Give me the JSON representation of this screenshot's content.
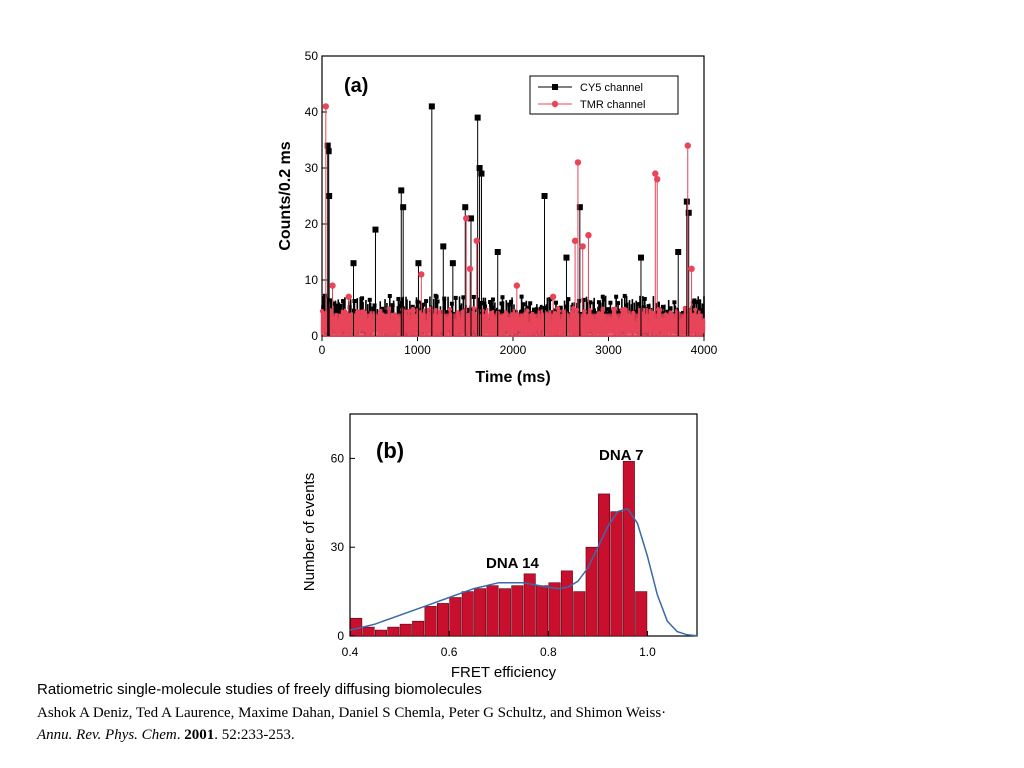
{
  "chart_data": [
    {
      "type": "line",
      "panel_label": "(a)",
      "xlabel": "Time (ms)",
      "ylabel": "Counts/0.2 ms",
      "xlim": [
        0,
        4000
      ],
      "ylim": [
        0,
        50
      ],
      "xticks": [
        0,
        1000,
        2000,
        3000,
        4000
      ],
      "yticks": [
        0,
        10,
        20,
        30,
        40,
        50
      ],
      "legend_position": "top-right",
      "series": [
        {
          "name": "CY5 channel",
          "color": "#000000",
          "marker": "square",
          "bursts": [
            {
              "x": 60,
              "y": 34
            },
            {
              "x": 70,
              "y": 33
            },
            {
              "x": 75,
              "y": 25
            },
            {
              "x": 330,
              "y": 13
            },
            {
              "x": 560,
              "y": 19
            },
            {
              "x": 830,
              "y": 26
            },
            {
              "x": 850,
              "y": 23
            },
            {
              "x": 1010,
              "y": 13
            },
            {
              "x": 1150,
              "y": 41
            },
            {
              "x": 1270,
              "y": 16
            },
            {
              "x": 1370,
              "y": 13
            },
            {
              "x": 1500,
              "y": 23
            },
            {
              "x": 1560,
              "y": 21
            },
            {
              "x": 1630,
              "y": 39
            },
            {
              "x": 1650,
              "y": 30
            },
            {
              "x": 1670,
              "y": 29
            },
            {
              "x": 1840,
              "y": 15
            },
            {
              "x": 2330,
              "y": 25
            },
            {
              "x": 2560,
              "y": 14
            },
            {
              "x": 2700,
              "y": 23
            },
            {
              "x": 3340,
              "y": 14
            },
            {
              "x": 3730,
              "y": 15
            },
            {
              "x": 3820,
              "y": 24
            },
            {
              "x": 3840,
              "y": 22
            }
          ],
          "baseline_range": [
            0,
            6
          ]
        },
        {
          "name": "TMR channel",
          "color": "#e8445a",
          "marker": "circle",
          "bursts": [
            {
              "x": 40,
              "y": 41
            },
            {
              "x": 110,
              "y": 9
            },
            {
              "x": 280,
              "y": 7
            },
            {
              "x": 1040,
              "y": 11
            },
            {
              "x": 1510,
              "y": 21
            },
            {
              "x": 1550,
              "y": 12
            },
            {
              "x": 1620,
              "y": 17
            },
            {
              "x": 2040,
              "y": 9
            },
            {
              "x": 2420,
              "y": 7
            },
            {
              "x": 2650,
              "y": 17
            },
            {
              "x": 2680,
              "y": 31
            },
            {
              "x": 2730,
              "y": 16
            },
            {
              "x": 2790,
              "y": 18
            },
            {
              "x": 3490,
              "y": 29
            },
            {
              "x": 3510,
              "y": 28
            },
            {
              "x": 3830,
              "y": 34
            },
            {
              "x": 3870,
              "y": 12
            }
          ],
          "baseline_range": [
            0,
            5
          ]
        }
      ]
    },
    {
      "type": "bar",
      "panel_label": "(b)",
      "xlabel": "FRET efficiency",
      "ylabel": "Number of events",
      "xlim": [
        0.4,
        1.1
      ],
      "ylim": [
        0,
        75
      ],
      "xticks": [
        0.4,
        0.6,
        0.8,
        1.0
      ],
      "xtick_labels": [
        "0.4",
        "0.6",
        "0.8",
        "1.0"
      ],
      "yticks": [
        0,
        30,
        60
      ],
      "bar_color": "#c8102e",
      "bin_width": 0.025,
      "bin_starts": [
        0.4,
        0.425,
        0.45,
        0.475,
        0.5,
        0.525,
        0.55,
        0.575,
        0.6,
        0.625,
        0.65,
        0.675,
        0.7,
        0.725,
        0.75,
        0.775,
        0.8,
        0.825,
        0.85,
        0.875,
        0.9,
        0.925,
        0.95,
        0.975,
        1.0,
        1.025,
        1.05,
        1.075
      ],
      "values": [
        6,
        3,
        2,
        3,
        4,
        5,
        10,
        11,
        13,
        15,
        16,
        17,
        16,
        17,
        21,
        17,
        18,
        22,
        15,
        30,
        48,
        42,
        59,
        15,
        0,
        0,
        0,
        0
      ],
      "fit_color": "#3a6aa8",
      "annotations": [
        "DNA 14",
        "DNA 7"
      ],
      "fit_curve": {
        "x": [
          0.4,
          0.45,
          0.5,
          0.55,
          0.6,
          0.65,
          0.7,
          0.75,
          0.8,
          0.82,
          0.84,
          0.86,
          0.88,
          0.9,
          0.92,
          0.94,
          0.96,
          0.98,
          1.0,
          1.02,
          1.04,
          1.06,
          1.08,
          1.1
        ],
        "y": [
          2,
          4,
          7,
          10,
          13,
          16,
          18,
          18,
          16.5,
          16,
          16.5,
          18.5,
          23,
          30,
          37,
          42,
          43,
          38,
          27,
          14,
          5,
          1.5,
          0.4,
          0.1
        ]
      }
    }
  ],
  "caption": {
    "title": "Ratiometric single-molecule studies of freely diffusing biomolecules",
    "authors": "Ashok A Deniz, Ted A Laurence, Maxime Dahan, Daniel S Chemla, Peter G Schultz, and Shimon Weiss",
    "journal": "Annu. Rev. Phys. Chem",
    "year": "2001",
    "pages": ". 52:233-253."
  }
}
